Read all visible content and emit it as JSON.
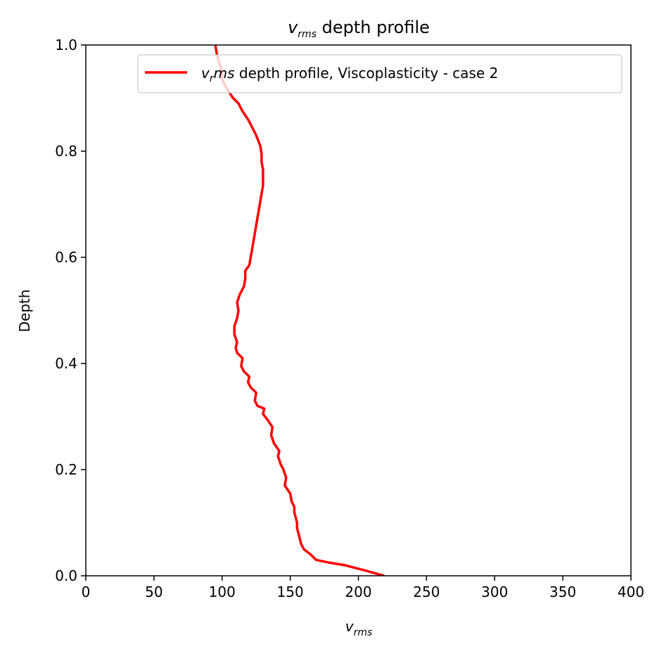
{
  "chart_data": {
    "type": "line",
    "title_main": "v",
    "title_sub": "rms",
    "title_rest": " depth profile",
    "xlabel_main": "v",
    "xlabel_sub": "rms",
    "ylabel": "Depth",
    "xlim": [
      0,
      400
    ],
    "ylim": [
      0,
      1
    ],
    "xticks": [
      0,
      50,
      100,
      150,
      200,
      250,
      300,
      350,
      400
    ],
    "yticks": [
      0.0,
      0.2,
      0.4,
      0.6,
      0.8,
      1.0
    ],
    "xtick_labels": [
      "0",
      "50",
      "100",
      "150",
      "200",
      "250",
      "300",
      "350",
      "400"
    ],
    "ytick_labels": [
      "0.0",
      "0.2",
      "0.4",
      "0.6",
      "0.8",
      "1.0"
    ],
    "legend_position": "top-right",
    "grid": false,
    "series": [
      {
        "legend_main": "v",
        "legend_sub": "r",
        "legend_italic_rest": "ms",
        "legend_rest": " depth profile, Viscoplasticity - case 2",
        "color": "#ff0000",
        "x": [
          219,
          205,
          190,
          178,
          169,
          165,
          160,
          158,
          157,
          156,
          155,
          155,
          154,
          153,
          153,
          151,
          150,
          146,
          147,
          145,
          143,
          141,
          142,
          138,
          136,
          137,
          133,
          130,
          131,
          126,
          124,
          125,
          121,
          119,
          120,
          116,
          114,
          115,
          111,
          110,
          111,
          109,
          109,
          111,
          112,
          111,
          113,
          116,
          117,
          117,
          120,
          121,
          122,
          123,
          124,
          125,
          126,
          127,
          128,
          129,
          130,
          130,
          130,
          129,
          129,
          128,
          125,
          122,
          119,
          115,
          112,
          108,
          103,
          100,
          100,
          98,
          96,
          95
        ],
        "y": [
          0.0,
          0.01,
          0.02,
          0.025,
          0.03,
          0.04,
          0.05,
          0.06,
          0.07,
          0.08,
          0.09,
          0.1,
          0.11,
          0.12,
          0.13,
          0.14,
          0.155,
          0.17,
          0.185,
          0.2,
          0.21,
          0.225,
          0.235,
          0.25,
          0.265,
          0.28,
          0.295,
          0.305,
          0.315,
          0.32,
          0.33,
          0.345,
          0.355,
          0.365,
          0.375,
          0.385,
          0.395,
          0.41,
          0.42,
          0.43,
          0.44,
          0.455,
          0.47,
          0.485,
          0.5,
          0.515,
          0.53,
          0.545,
          0.56,
          0.575,
          0.585,
          0.6,
          0.615,
          0.63,
          0.645,
          0.66,
          0.675,
          0.69,
          0.705,
          0.72,
          0.735,
          0.75,
          0.765,
          0.78,
          0.795,
          0.81,
          0.83,
          0.845,
          0.86,
          0.875,
          0.89,
          0.9,
          0.92,
          0.935,
          0.95,
          0.965,
          0.985,
          1.0
        ]
      }
    ]
  }
}
